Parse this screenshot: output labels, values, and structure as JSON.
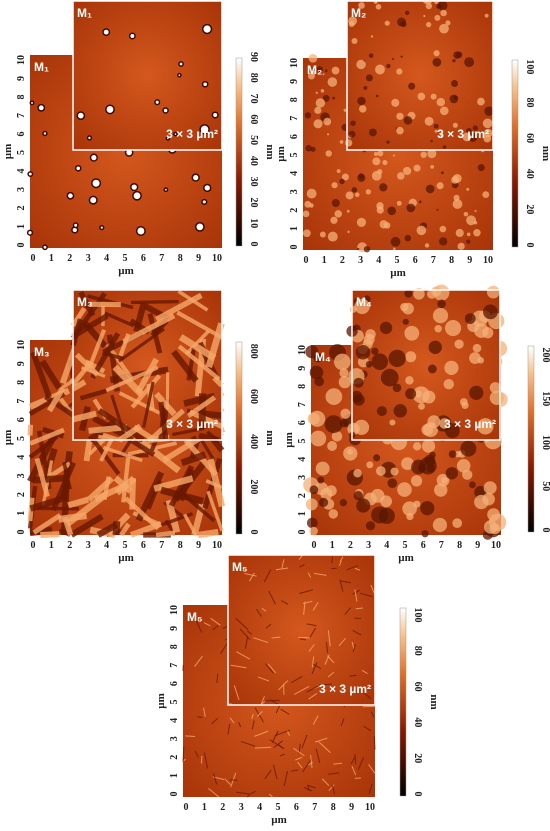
{
  "panels": [
    {
      "label": "M₁",
      "inset_size": "3 × 3 µm²",
      "x_label": "µm",
      "y_label": "µm",
      "x_ticks": [
        "0",
        "1",
        "2",
        "3",
        "4",
        "5",
        "6",
        "7",
        "8",
        "9",
        "10"
      ],
      "y_ticks": [
        "0",
        "1",
        "2",
        "3",
        "4",
        "5",
        "6",
        "7",
        "8",
        "9",
        "10"
      ],
      "colorbar_label": "nm",
      "colorbar_ticks": [
        "0",
        "10",
        "20",
        "30",
        "40",
        "50",
        "60",
        "70",
        "80",
        "90"
      ]
    },
    {
      "label": "M₂",
      "inset_size": "3 × 3 µm²",
      "x_label": "µm",
      "y_label": "µm",
      "x_ticks": [
        "0",
        "1",
        "2",
        "3",
        "4",
        "5",
        "6",
        "7",
        "8",
        "9",
        "10"
      ],
      "y_ticks": [
        "0",
        "1",
        "2",
        "3",
        "4",
        "5",
        "6",
        "7",
        "8",
        "9",
        "10"
      ],
      "colorbar_label": "nm",
      "colorbar_ticks": [
        "0",
        "20",
        "40",
        "60",
        "80",
        "100"
      ]
    },
    {
      "label": "M₃",
      "inset_size": "3 × 3 µm²",
      "x_label": "µm",
      "y_label": "µm",
      "x_ticks": [
        "0",
        "1",
        "2",
        "3",
        "4",
        "5",
        "6",
        "7",
        "8",
        "9",
        "10"
      ],
      "y_ticks": [
        "0",
        "1",
        "2",
        "3",
        "4",
        "5",
        "6",
        "7",
        "8",
        "9",
        "10"
      ],
      "colorbar_label": "nm",
      "colorbar_ticks": [
        "0",
        "200",
        "400",
        "600",
        "800"
      ]
    },
    {
      "label": "M₄",
      "inset_size": "3 × 3 µm²",
      "x_label": "µm",
      "y_label": "µm",
      "x_ticks": [
        "0",
        "1",
        "2",
        "3",
        "4",
        "5",
        "6",
        "7",
        "8",
        "9",
        "10"
      ],
      "y_ticks": [
        "0",
        "1",
        "2",
        "3",
        "4",
        "5",
        "6",
        "7",
        "8",
        "9",
        "10"
      ],
      "colorbar_label": "nm",
      "colorbar_ticks": [
        "0",
        "50",
        "100",
        "150",
        "200"
      ]
    },
    {
      "label": "M₅",
      "inset_size": "3 × 3 µm²",
      "x_label": "µm",
      "y_label": "µm",
      "x_ticks": [
        "0",
        "1",
        "2",
        "3",
        "4",
        "5",
        "6",
        "7",
        "8",
        "9",
        "10"
      ],
      "y_ticks": [
        "0",
        "1",
        "2",
        "3",
        "4",
        "5",
        "6",
        "7",
        "8",
        "9",
        "10"
      ],
      "colorbar_label": "nm",
      "colorbar_ticks": [
        "0",
        "20",
        "40",
        "60",
        "80",
        "100"
      ]
    }
  ]
}
